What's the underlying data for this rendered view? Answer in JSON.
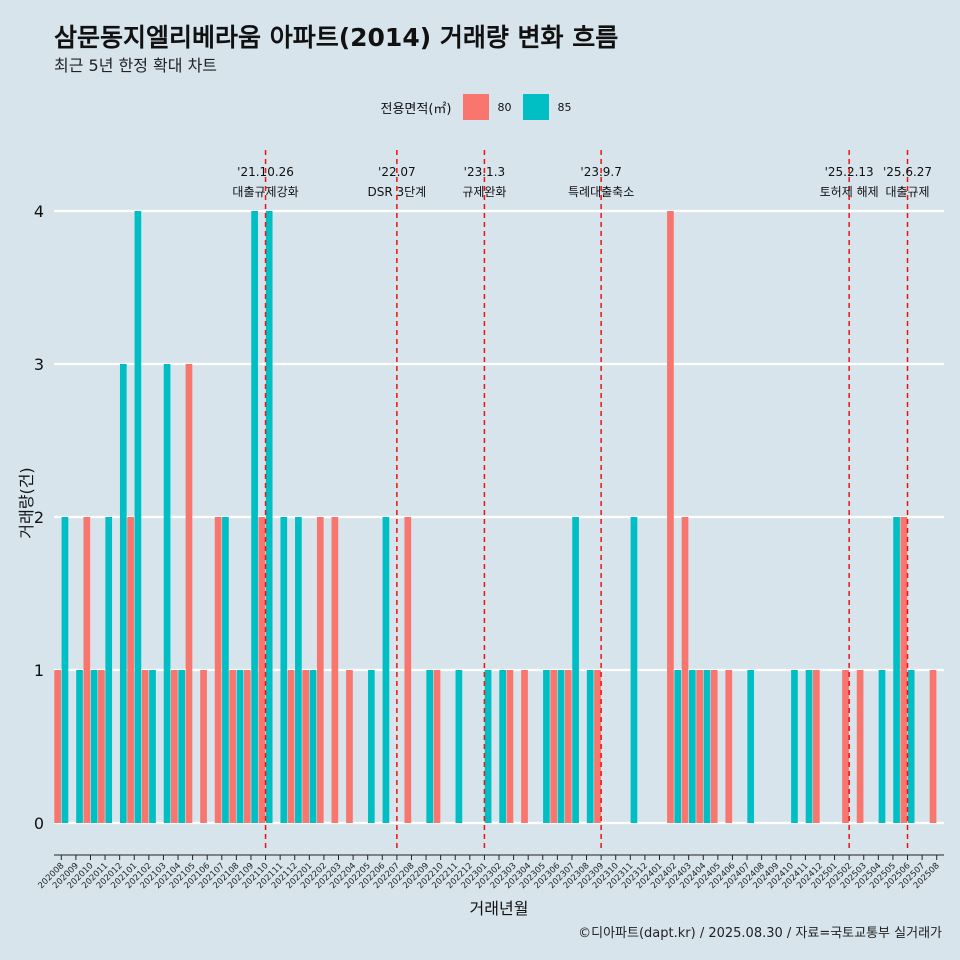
{
  "title": "삼문동지엘리베라움 아파트(2014) 거래량 변화 흐름",
  "subtitle": "최근 5년 한정 확대 차트",
  "caption": "©디아파트(dapt.kr) / 2025.08.30 / 자료=국토교통부 실거래가",
  "legend": {
    "title": "전용면적(㎡)",
    "items": [
      {
        "label": "80",
        "color": "#f8766d"
      },
      {
        "label": "85",
        "color": "#00bfc4"
      }
    ]
  },
  "chart_data": {
    "type": "bar",
    "xlabel": "거래년월",
    "ylabel": "거래량(건)",
    "ylim": [
      0,
      4
    ],
    "yticks": [
      "0",
      "1",
      "2",
      "3",
      "4"
    ],
    "grid": true,
    "legend_position": "top",
    "categories": [
      "202008",
      "202009",
      "202010",
      "202011",
      "202012",
      "202101",
      "202102",
      "202103",
      "202104",
      "202105",
      "202106",
      "202107",
      "202108",
      "202109",
      "202110",
      "202111",
      "202112",
      "202201",
      "202202",
      "202203",
      "202204",
      "202205",
      "202206",
      "202207",
      "202208",
      "202209",
      "202210",
      "202211",
      "202212",
      "202301",
      "202302",
      "202303",
      "202304",
      "202305",
      "202306",
      "202307",
      "202308",
      "202309",
      "202310",
      "202311",
      "202312",
      "202401",
      "202402",
      "202403",
      "202404",
      "202405",
      "202406",
      "202407",
      "202408",
      "202409",
      "202410",
      "202411",
      "202412",
      "202501",
      "202502",
      "202503",
      "202504",
      "202505",
      "202506",
      "202507",
      "202508"
    ],
    "series": [
      {
        "name": "80",
        "color": "#f8766d",
        "values": [
          1,
          0,
          2,
          1,
          0,
          2,
          1,
          0,
          1,
          3,
          1,
          2,
          1,
          1,
          2,
          0,
          1,
          1,
          2,
          2,
          1,
          0,
          0,
          0,
          2,
          0,
          1,
          0,
          0,
          0,
          0,
          1,
          1,
          0,
          1,
          1,
          0,
          1,
          0,
          0,
          0,
          0,
          4,
          2,
          1,
          1,
          1,
          0,
          0,
          0,
          0,
          0,
          1,
          0,
          1,
          1,
          0,
          0,
          2,
          0,
          1
        ]
      },
      {
        "name": "85",
        "color": "#00bfc4",
        "values": [
          2,
          1,
          1,
          2,
          3,
          4,
          1,
          3,
          1,
          0,
          0,
          2,
          1,
          4,
          4,
          2,
          2,
          1,
          0,
          0,
          0,
          1,
          2,
          0,
          0,
          1,
          0,
          1,
          0,
          1,
          1,
          0,
          0,
          1,
          1,
          2,
          1,
          0,
          0,
          2,
          0,
          0,
          1,
          1,
          1,
          0,
          0,
          1,
          0,
          0,
          1,
          1,
          0,
          0,
          0,
          0,
          1,
          2,
          1,
          0,
          0
        ]
      }
    ],
    "annotations": [
      {
        "date": "'21.10.26",
        "text": "대출규제강화",
        "at": "202110"
      },
      {
        "date": "'22.07",
        "text": "DSR 3단계",
        "at": "202207"
      },
      {
        "date": "'23.1.3",
        "text": "규제완화",
        "at": "202301"
      },
      {
        "date": "'23.9.7",
        "text": "특례대출축소",
        "at": "202309"
      },
      {
        "date": "'25.2.13",
        "text": "토허제 해제",
        "at": "202502"
      },
      {
        "date": "'25.6.27",
        "text": "대출규제",
        "at": "202506"
      }
    ]
  }
}
